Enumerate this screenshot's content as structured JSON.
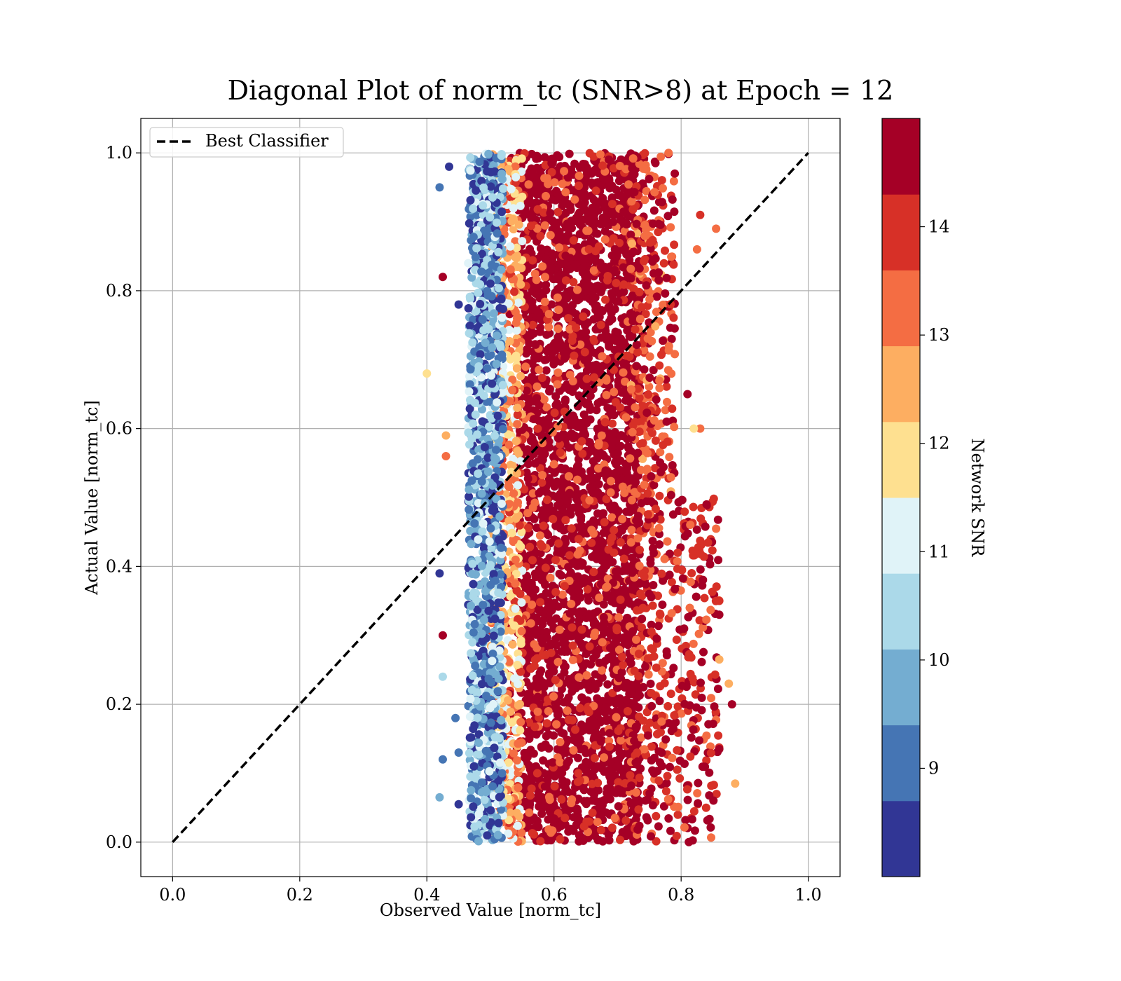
{
  "chart_data": {
    "type": "scatter",
    "title": "Diagonal Plot of norm_tc (SNR>8) at Epoch = 12",
    "xlabel": "Observed Value [norm_tc]",
    "ylabel": "Actual Value [norm_tc]",
    "xlim": [
      -0.05,
      1.05
    ],
    "ylim": [
      -0.05,
      1.05
    ],
    "xticks": [
      "0.0",
      "0.2",
      "0.4",
      "0.6",
      "0.8",
      "1.0"
    ],
    "yticks": [
      "0.0",
      "0.2",
      "0.4",
      "0.6",
      "0.8",
      "1.0"
    ],
    "xtick_values": [
      0.0,
      0.2,
      0.4,
      0.6,
      0.8,
      1.0
    ],
    "ytick_values": [
      0.0,
      0.2,
      0.4,
      0.6,
      0.8,
      1.0
    ],
    "grid": true,
    "legend": {
      "placement": "top-left",
      "entries": [
        {
          "label": "Best Classifier",
          "style": "dashed",
          "color": "#000000"
        }
      ]
    },
    "reference_line": {
      "name": "Best Classifier",
      "x": [
        0.0,
        1.0
      ],
      "y": [
        0.0,
        1.0
      ]
    },
    "colorbar": {
      "label": "Network SNR",
      "range": [
        8,
        15
      ],
      "ticks": [
        "9",
        "10",
        "11",
        "12",
        "13",
        "14"
      ],
      "tick_values": [
        9,
        10,
        11,
        12,
        13,
        14
      ],
      "bins": [
        {
          "from": 8.0,
          "to": 8.7,
          "color": "#313695"
        },
        {
          "from": 8.7,
          "to": 9.4,
          "color": "#4575b4"
        },
        {
          "from": 9.4,
          "to": 10.1,
          "color": "#74add1"
        },
        {
          "from": 10.1,
          "to": 10.8,
          "color": "#abd9e9"
        },
        {
          "from": 10.8,
          "to": 11.5,
          "color": "#e0f3f8"
        },
        {
          "from": 11.5,
          "to": 12.2,
          "color": "#fee090"
        },
        {
          "from": 12.2,
          "to": 12.9,
          "color": "#fdae61"
        },
        {
          "from": 12.9,
          "to": 13.6,
          "color": "#f46d43"
        },
        {
          "from": 13.6,
          "to": 14.3,
          "color": "#d73027"
        },
        {
          "from": 14.3,
          "to": 15.0,
          "color": "#a50026"
        }
      ]
    },
    "points": [
      {
        "x": 0.4,
        "y": 0.68,
        "snr": 11.8
      },
      {
        "x": 0.42,
        "y": 0.95,
        "snr": 9.1
      },
      {
        "x": 0.435,
        "y": 0.98,
        "snr": 8.4
      },
      {
        "x": 0.425,
        "y": 0.82,
        "snr": 14.7
      },
      {
        "x": 0.45,
        "y": 0.78,
        "snr": 8.3
      },
      {
        "x": 0.43,
        "y": 0.59,
        "snr": 12.4
      },
      {
        "x": 0.43,
        "y": 0.56,
        "snr": 13.2
      },
      {
        "x": 0.42,
        "y": 0.39,
        "snr": 8.4
      },
      {
        "x": 0.425,
        "y": 0.3,
        "snr": 14.7
      },
      {
        "x": 0.425,
        "y": 0.24,
        "snr": 10.5
      },
      {
        "x": 0.445,
        "y": 0.18,
        "snr": 9.1
      },
      {
        "x": 0.425,
        "y": 0.12,
        "snr": 9.2
      },
      {
        "x": 0.45,
        "y": 0.13,
        "snr": 9.0
      },
      {
        "x": 0.42,
        "y": 0.065,
        "snr": 9.9
      },
      {
        "x": 0.45,
        "y": 0.055,
        "snr": 8.3
      },
      {
        "x": 0.465,
        "y": 0.84,
        "snr": 11.2
      },
      {
        "x": 0.83,
        "y": 0.91,
        "snr": 13.9
      },
      {
        "x": 0.855,
        "y": 0.89,
        "snr": 13.1
      },
      {
        "x": 0.825,
        "y": 0.86,
        "snr": 13.2
      },
      {
        "x": 0.84,
        "y": 0.49,
        "snr": 14.7
      },
      {
        "x": 0.83,
        "y": 0.6,
        "snr": 13.2
      },
      {
        "x": 0.86,
        "y": 0.35,
        "snr": 14.0
      },
      {
        "x": 0.86,
        "y": 0.33,
        "snr": 14.7
      },
      {
        "x": 0.86,
        "y": 0.265,
        "snr": 12.4
      },
      {
        "x": 0.875,
        "y": 0.23,
        "snr": 12.3
      },
      {
        "x": 0.88,
        "y": 0.2,
        "snr": 14.7
      },
      {
        "x": 0.86,
        "y": 0.135,
        "snr": 14.7
      },
      {
        "x": 0.885,
        "y": 0.085,
        "snr": 12.4
      },
      {
        "x": 0.81,
        "y": 0.65,
        "snr": 14.7
      },
      {
        "x": 0.82,
        "y": 0.6,
        "snr": 11.8
      },
      {
        "x": 0.79,
        "y": 0.97,
        "snr": 14.7
      }
    ],
    "point_clouds": [
      {
        "x_range": [
          0.545,
          0.735
        ],
        "y_range": [
          0.0,
          1.0
        ],
        "snr_range": [
          14.3,
          15.0
        ],
        "count": 2600
      },
      {
        "x_range": [
          0.52,
          0.76
        ],
        "y_range": [
          0.0,
          1.0
        ],
        "snr_range": [
          13.0,
          15.0
        ],
        "count": 900
      },
      {
        "x_range": [
          0.72,
          0.86
        ],
        "y_range": [
          0.0,
          0.5
        ],
        "snr_range": [
          13.4,
          15.0
        ],
        "count": 380
      },
      {
        "x_range": [
          0.72,
          0.79
        ],
        "y_range": [
          0.5,
          1.0
        ],
        "snr_range": [
          12.8,
          15.0
        ],
        "count": 260
      },
      {
        "x_range": [
          0.5,
          0.55
        ],
        "y_range": [
          0.0,
          1.0
        ],
        "snr_range": [
          11.0,
          13.8
        ],
        "count": 700
      },
      {
        "x_range": [
          0.465,
          0.52
        ],
        "y_range": [
          0.0,
          1.0
        ],
        "snr_range": [
          8.0,
          11.2
        ],
        "count": 1200
      }
    ]
  }
}
